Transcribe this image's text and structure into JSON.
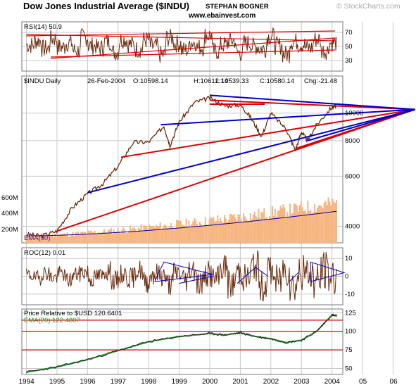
{
  "header": {
    "title": "Dow Jones Industrial Average ($INDU)",
    "author": "STEPHAN BOGNER",
    "watermark": "© StockCharts.com",
    "website": "www.ebainvest.com"
  },
  "colors": {
    "price": "#6b2a0a",
    "rsi": "#6b2a0a",
    "roc": "#6b2a0a",
    "trend_red": "#dd0000",
    "trend_blue": "#0000cc",
    "volume": "#f7b580",
    "ema_volume": "#0000aa",
    "ratio": "#222222",
    "ema_ratio": "#2a9a2a",
    "ref_line": "#cc0000",
    "grid": "#c8c8c8",
    "panel_border": "#777777"
  },
  "chart_data": [
    {
      "type": "line",
      "panel": "rsi",
      "label": "RSI(14)",
      "value": "50.9",
      "ticks": [
        "30",
        "50",
        "70"
      ],
      "ylim": [
        15,
        85
      ],
      "approx_values": [
        52,
        58,
        47,
        61,
        49,
        55,
        44,
        63,
        51,
        48,
        57,
        42,
        60,
        53,
        46,
        59,
        50,
        38,
        62,
        54,
        45,
        56,
        49,
        66,
        43,
        52,
        58,
        41,
        55,
        50,
        47,
        64,
        51,
        39,
        57,
        53,
        48,
        60,
        44,
        55,
        51
      ]
    },
    {
      "type": "line",
      "panel": "price",
      "label": "$INDU Daily",
      "date": "26-Feb-2004",
      "open_label": "O:10598.14",
      "high_label": "H:10612.14",
      "low_label": "L:10539.33",
      "close_label": "C:10580.14",
      "chg_label": "Chg:-21.48",
      "scale": "log",
      "ylim": [
        3500,
        13500
      ],
      "right_ticks": [
        "4000",
        "6000",
        "8000",
        "10000"
      ],
      "volume_ticks": [
        "200M",
        "400M",
        "600M"
      ],
      "volume_ema_label": "EMA(60)",
      "x": [
        1994.0,
        1994.5,
        1995.0,
        1995.5,
        1996.0,
        1996.5,
        1997.0,
        1997.5,
        1998.0,
        1998.5,
        1998.7,
        1999.0,
        1999.5,
        2000.0,
        2000.5,
        2001.0,
        2001.3,
        2001.7,
        2002.0,
        2002.5,
        2002.8,
        2003.0,
        2003.2,
        2003.5,
        2004.0,
        2004.15
      ],
      "y": [
        3750,
        3700,
        3850,
        4650,
        5200,
        5650,
        6500,
        7900,
        7900,
        9000,
        7700,
        9300,
        10900,
        11300,
        10600,
        10700,
        9800,
        8300,
        10000,
        8800,
        7400,
        8600,
        8000,
        9100,
        10500,
        10580
      ]
    },
    {
      "type": "line",
      "panel": "roc",
      "label": "ROC(12)",
      "value": "0.01",
      "ticks": [
        "-10",
        "0",
        "10"
      ],
      "ylim": [
        -16,
        16
      ],
      "approx_values": [
        1,
        -2,
        4,
        -1,
        3,
        -4,
        2,
        5,
        -3,
        0,
        6,
        -5,
        2,
        -2,
        7,
        -6,
        3,
        1,
        -8,
        4,
        -3,
        9,
        -7,
        2,
        -4,
        10,
        -9,
        5,
        -2,
        12,
        -11,
        6,
        -5,
        8,
        -10,
        4,
        3,
        -6,
        7,
        0,
        0.01
      ]
    },
    {
      "type": "line",
      "panel": "ratio",
      "label": "Price Relative to $USD",
      "value": "120.6401",
      "ema_label": "EMA(20)",
      "ema_value": "122.4807",
      "ticks": [
        "50",
        "75",
        "100",
        "125"
      ],
      "reference_lines": [
        75,
        100,
        115
      ],
      "ylim": [
        42,
        130
      ],
      "x": [
        1994.0,
        1995.0,
        1996.0,
        1997.0,
        1998.0,
        1999.0,
        2000.0,
        2000.5,
        2001.0,
        2001.5,
        2002.0,
        2002.5,
        2003.0,
        2003.5,
        2004.0,
        2004.15
      ],
      "y": [
        45,
        52,
        62,
        74,
        86,
        93,
        97,
        95,
        98,
        93,
        90,
        85,
        88,
        100,
        122,
        120.6
      ]
    },
    {
      "type": "line",
      "panel": "x-axis",
      "x_tick_labels": [
        "1994",
        "1995",
        "1996",
        "1997",
        "1998",
        "1999",
        "2000",
        "2001",
        "2002",
        "2003",
        "2004",
        "05",
        "06"
      ],
      "xlim": [
        1993.85,
        2006.75
      ]
    }
  ]
}
